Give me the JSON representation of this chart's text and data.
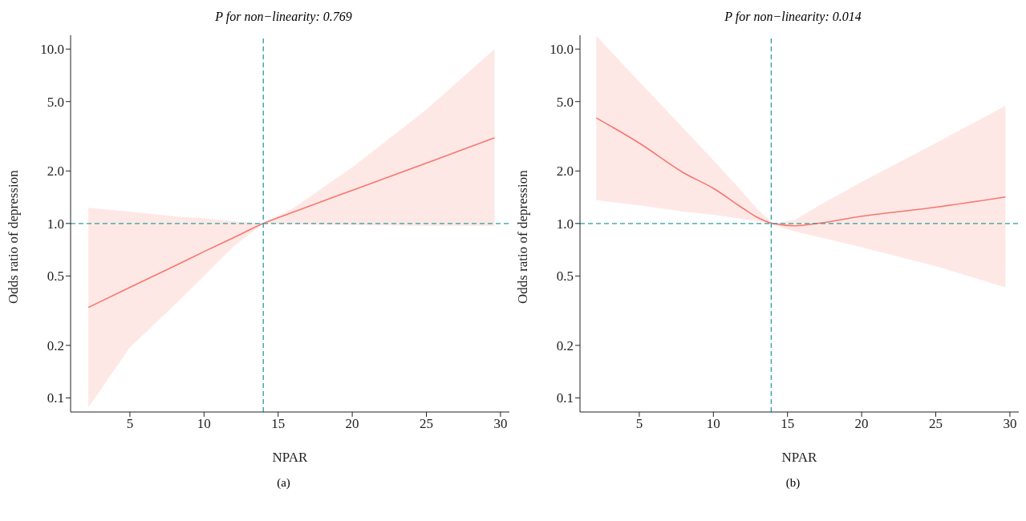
{
  "chart_data": [
    {
      "type": "line",
      "title": "P for non−linearity: 0.769",
      "xlabel": "NPAR",
      "ylabel": "Odds ratio of depression",
      "annotations": [
        "(a)"
      ],
      "log": "y",
      "grid": false,
      "legend": false,
      "marker": "none",
      "line_style": "solid",
      "x": [
        2.2,
        5,
        8,
        10,
        12,
        14,
        16,
        20,
        25,
        29.6
      ],
      "series": [
        {
          "color": "#f8766d",
          "values": [
            0.33,
            0.43,
            0.57,
            0.69,
            0.83,
            1.0,
            1.16,
            1.55,
            2.22,
            3.1
          ],
          "lower": [
            0.088,
            0.195,
            0.34,
            0.5,
            0.74,
            1.0,
            0.99,
            0.98,
            0.97,
            0.97
          ],
          "upper": [
            1.23,
            1.17,
            1.1,
            1.07,
            1.03,
            1.0,
            1.22,
            2.1,
            4.5,
            10
          ]
        }
      ],
      "xlim": [
        1,
        30.6
      ],
      "xticks": [
        5,
        10,
        15,
        20,
        25,
        30
      ],
      "ylim": [
        0.083,
        12
      ],
      "yticks": [
        {
          "value": 0.1,
          "label": "0.1"
        },
        {
          "value": 0.2,
          "label": "0.2"
        },
        {
          "value": 0.5,
          "label": "0.5"
        },
        {
          "value": 1,
          "label": "1.0"
        },
        {
          "value": 2,
          "label": "2.0"
        },
        {
          "value": 5,
          "label": "5.0"
        },
        {
          "value": 10,
          "label": "10.0"
        }
      ],
      "ref_lines": [
        {
          "axis": "x",
          "value": 14,
          "color": "#2a9d9d",
          "line_style": "dashed"
        },
        {
          "axis": "y",
          "value": 1,
          "color": "#2a9d9d",
          "line_style": "dashed"
        }
      ]
    },
    {
      "type": "line",
      "title": "P for non−linearity: 0.014",
      "xlabel": "NPAR",
      "ylabel": "Odds ratio of depression",
      "annotations": [
        "(b)"
      ],
      "log": "y",
      "grid": false,
      "legend": false,
      "marker": "none",
      "line_style": "solid",
      "x": [
        2.1,
        5,
        8,
        10,
        12,
        13,
        14,
        15.5,
        17,
        20,
        25,
        29.7
      ],
      "series": [
        {
          "color": "#f8766d",
          "values": [
            4.03,
            2.89,
            1.95,
            1.59,
            1.22,
            1.08,
            1.0,
            0.97,
            1.0,
            1.1,
            1.24,
            1.42
          ],
          "lower": [
            1.36,
            1.27,
            1.17,
            1.12,
            1.06,
            1.03,
            0.98,
            0.9,
            0.84,
            0.73,
            0.57,
            0.43
          ],
          "upper": [
            11.9,
            6.5,
            3.5,
            2.3,
            1.5,
            1.2,
            1.0,
            1.05,
            1.25,
            1.73,
            2.89,
            4.73
          ]
        }
      ],
      "xlim": [
        1,
        30.6
      ],
      "xticks": [
        5,
        10,
        15,
        20,
        25,
        30
      ],
      "ylim": [
        0.083,
        12
      ],
      "yticks": [
        {
          "value": 0.1,
          "label": "0.1"
        },
        {
          "value": 0.2,
          "label": "0.2"
        },
        {
          "value": 0.5,
          "label": "0.5"
        },
        {
          "value": 1,
          "label": "1.0"
        },
        {
          "value": 2,
          "label": "2.0"
        },
        {
          "value": 5,
          "label": "5.0"
        },
        {
          "value": 10,
          "label": "10.0"
        }
      ],
      "ref_lines": [
        {
          "axis": "x",
          "value": 13.9,
          "color": "#2a9d9d",
          "line_style": "dashed"
        },
        {
          "axis": "y",
          "value": 1,
          "color": "#2a9d9d",
          "line_style": "dashed"
        }
      ]
    }
  ]
}
